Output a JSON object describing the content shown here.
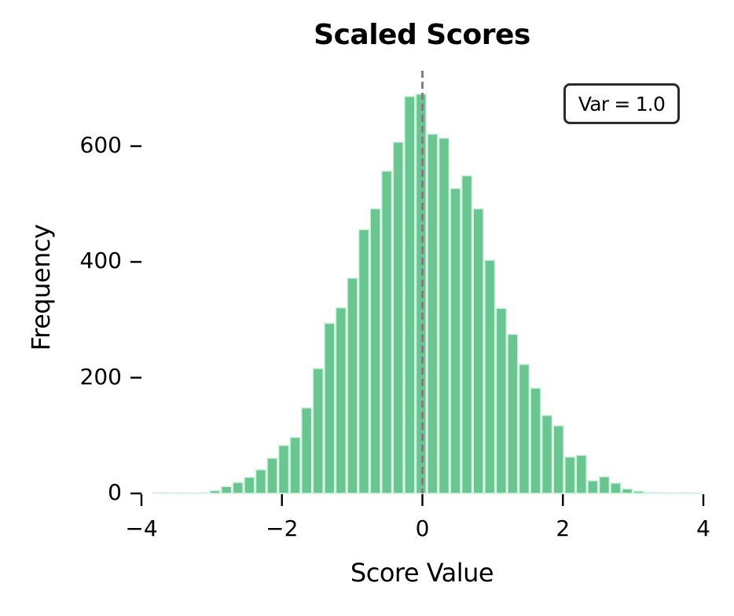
{
  "chart_data": {
    "type": "bar",
    "subtype": "histogram",
    "title": "Scaled Scores",
    "xlabel": "Score Value",
    "ylabel": "Frequency",
    "xlim": [
      -4,
      4
    ],
    "ylim": [
      0,
      730
    ],
    "xticks": [
      -4,
      -2,
      0,
      2,
      4
    ],
    "xtick_labels": [
      "−4",
      "−2",
      "0",
      "2",
      "4"
    ],
    "yticks": [
      0,
      200,
      400,
      600
    ],
    "ytick_labels": [
      "0",
      "200",
      "400",
      "600"
    ],
    "grid": false,
    "bin_width": 0.163,
    "bin_start": -3.849,
    "categories": [
      -3.77,
      -3.6,
      -3.44,
      -3.28,
      -3.11,
      -2.95,
      -2.79,
      -2.62,
      -2.46,
      -2.3,
      -2.13,
      -1.97,
      -1.81,
      -1.64,
      -1.48,
      -1.32,
      -1.15,
      -0.99,
      -0.83,
      -0.66,
      -0.5,
      -0.34,
      -0.18,
      -0.01,
      0.15,
      0.31,
      0.48,
      0.64,
      0.8,
      0.97,
      1.13,
      1.29,
      1.46,
      1.62,
      1.78,
      1.95,
      2.11,
      2.27,
      2.44,
      2.6,
      2.76,
      2.93,
      3.09,
      3.25,
      3.42,
      3.58,
      3.74,
      3.91
    ],
    "values": [
      1,
      1,
      1,
      0,
      1,
      5,
      12,
      19,
      28,
      41,
      61,
      83,
      97,
      148,
      216,
      294,
      321,
      372,
      456,
      492,
      557,
      607,
      686,
      690,
      621,
      614,
      527,
      549,
      492,
      403,
      320,
      275,
      223,
      182,
      135,
      117,
      63,
      66,
      22,
      29,
      18,
      8,
      4,
      2,
      1,
      1,
      1,
      1
    ],
    "annotations": [
      {
        "type": "vline",
        "x": 0,
        "style": "dashed",
        "color": "#808080"
      },
      {
        "type": "textbox",
        "text": "Var = 1.0",
        "position": "upper right"
      }
    ],
    "colors": {
      "bar_fill": "#69c691",
      "bar_edge": "#d6f2e2",
      "vline": "#808080",
      "box_border": "#2b2b2b"
    }
  },
  "labels": {
    "title": "Scaled Scores",
    "xlabel": "Score Value",
    "ylabel": "Frequency",
    "annotation": "Var = 1.0"
  }
}
